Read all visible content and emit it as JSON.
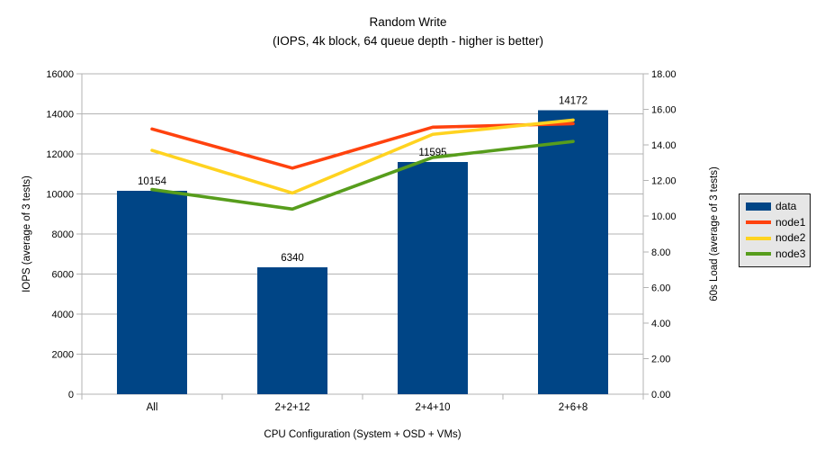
{
  "title": "Random Write",
  "subtitle": "(IOPS, 4k block, 64 queue depth - higher is better)",
  "chart_data": {
    "type": "bar+line",
    "title": "Random Write",
    "subtitle": "(IOPS, 4k block, 64 queue depth - higher is better)",
    "categories": [
      "All",
      "2+2+12",
      "2+4+10",
      "2+6+8"
    ],
    "xlabel": "CPU Configuration (System + OSD + VMs)",
    "left_axis": {
      "label": "IOPS (average of 3 tests)",
      "min": 0,
      "max": 16000,
      "step": 2000,
      "decimals": 0
    },
    "right_axis": {
      "label": "60s Load (average of 3 tests)",
      "min": 0,
      "max": 18,
      "step": 2,
      "decimals": 2
    },
    "series": [
      {
        "name": "data",
        "kind": "bar",
        "axis": "left",
        "color": "#004586",
        "values": [
          10154,
          6340,
          11595,
          14172
        ],
        "show_labels": true
      },
      {
        "name": "node1",
        "kind": "line",
        "axis": "right",
        "color": "#FF420E",
        "values": [
          14.9,
          12.7,
          15.0,
          15.2
        ]
      },
      {
        "name": "node2",
        "kind": "line",
        "axis": "right",
        "color": "#FFD320",
        "values": [
          13.7,
          11.3,
          14.6,
          15.4
        ]
      },
      {
        "name": "node3",
        "kind": "line",
        "axis": "right",
        "color": "#579D1C",
        "values": [
          11.5,
          10.4,
          13.3,
          14.2
        ]
      }
    ],
    "legend": {
      "position": "right",
      "entries": [
        "data",
        "node1",
        "node2",
        "node3"
      ]
    },
    "grid": true,
    "grid_color": "#b3b3b3",
    "axis_color": "#b3b3b3",
    "text_color": "#000000",
    "background": "#ffffff",
    "legend_bg": "#e6e6e6",
    "legend_border": "#1a1a1a"
  }
}
